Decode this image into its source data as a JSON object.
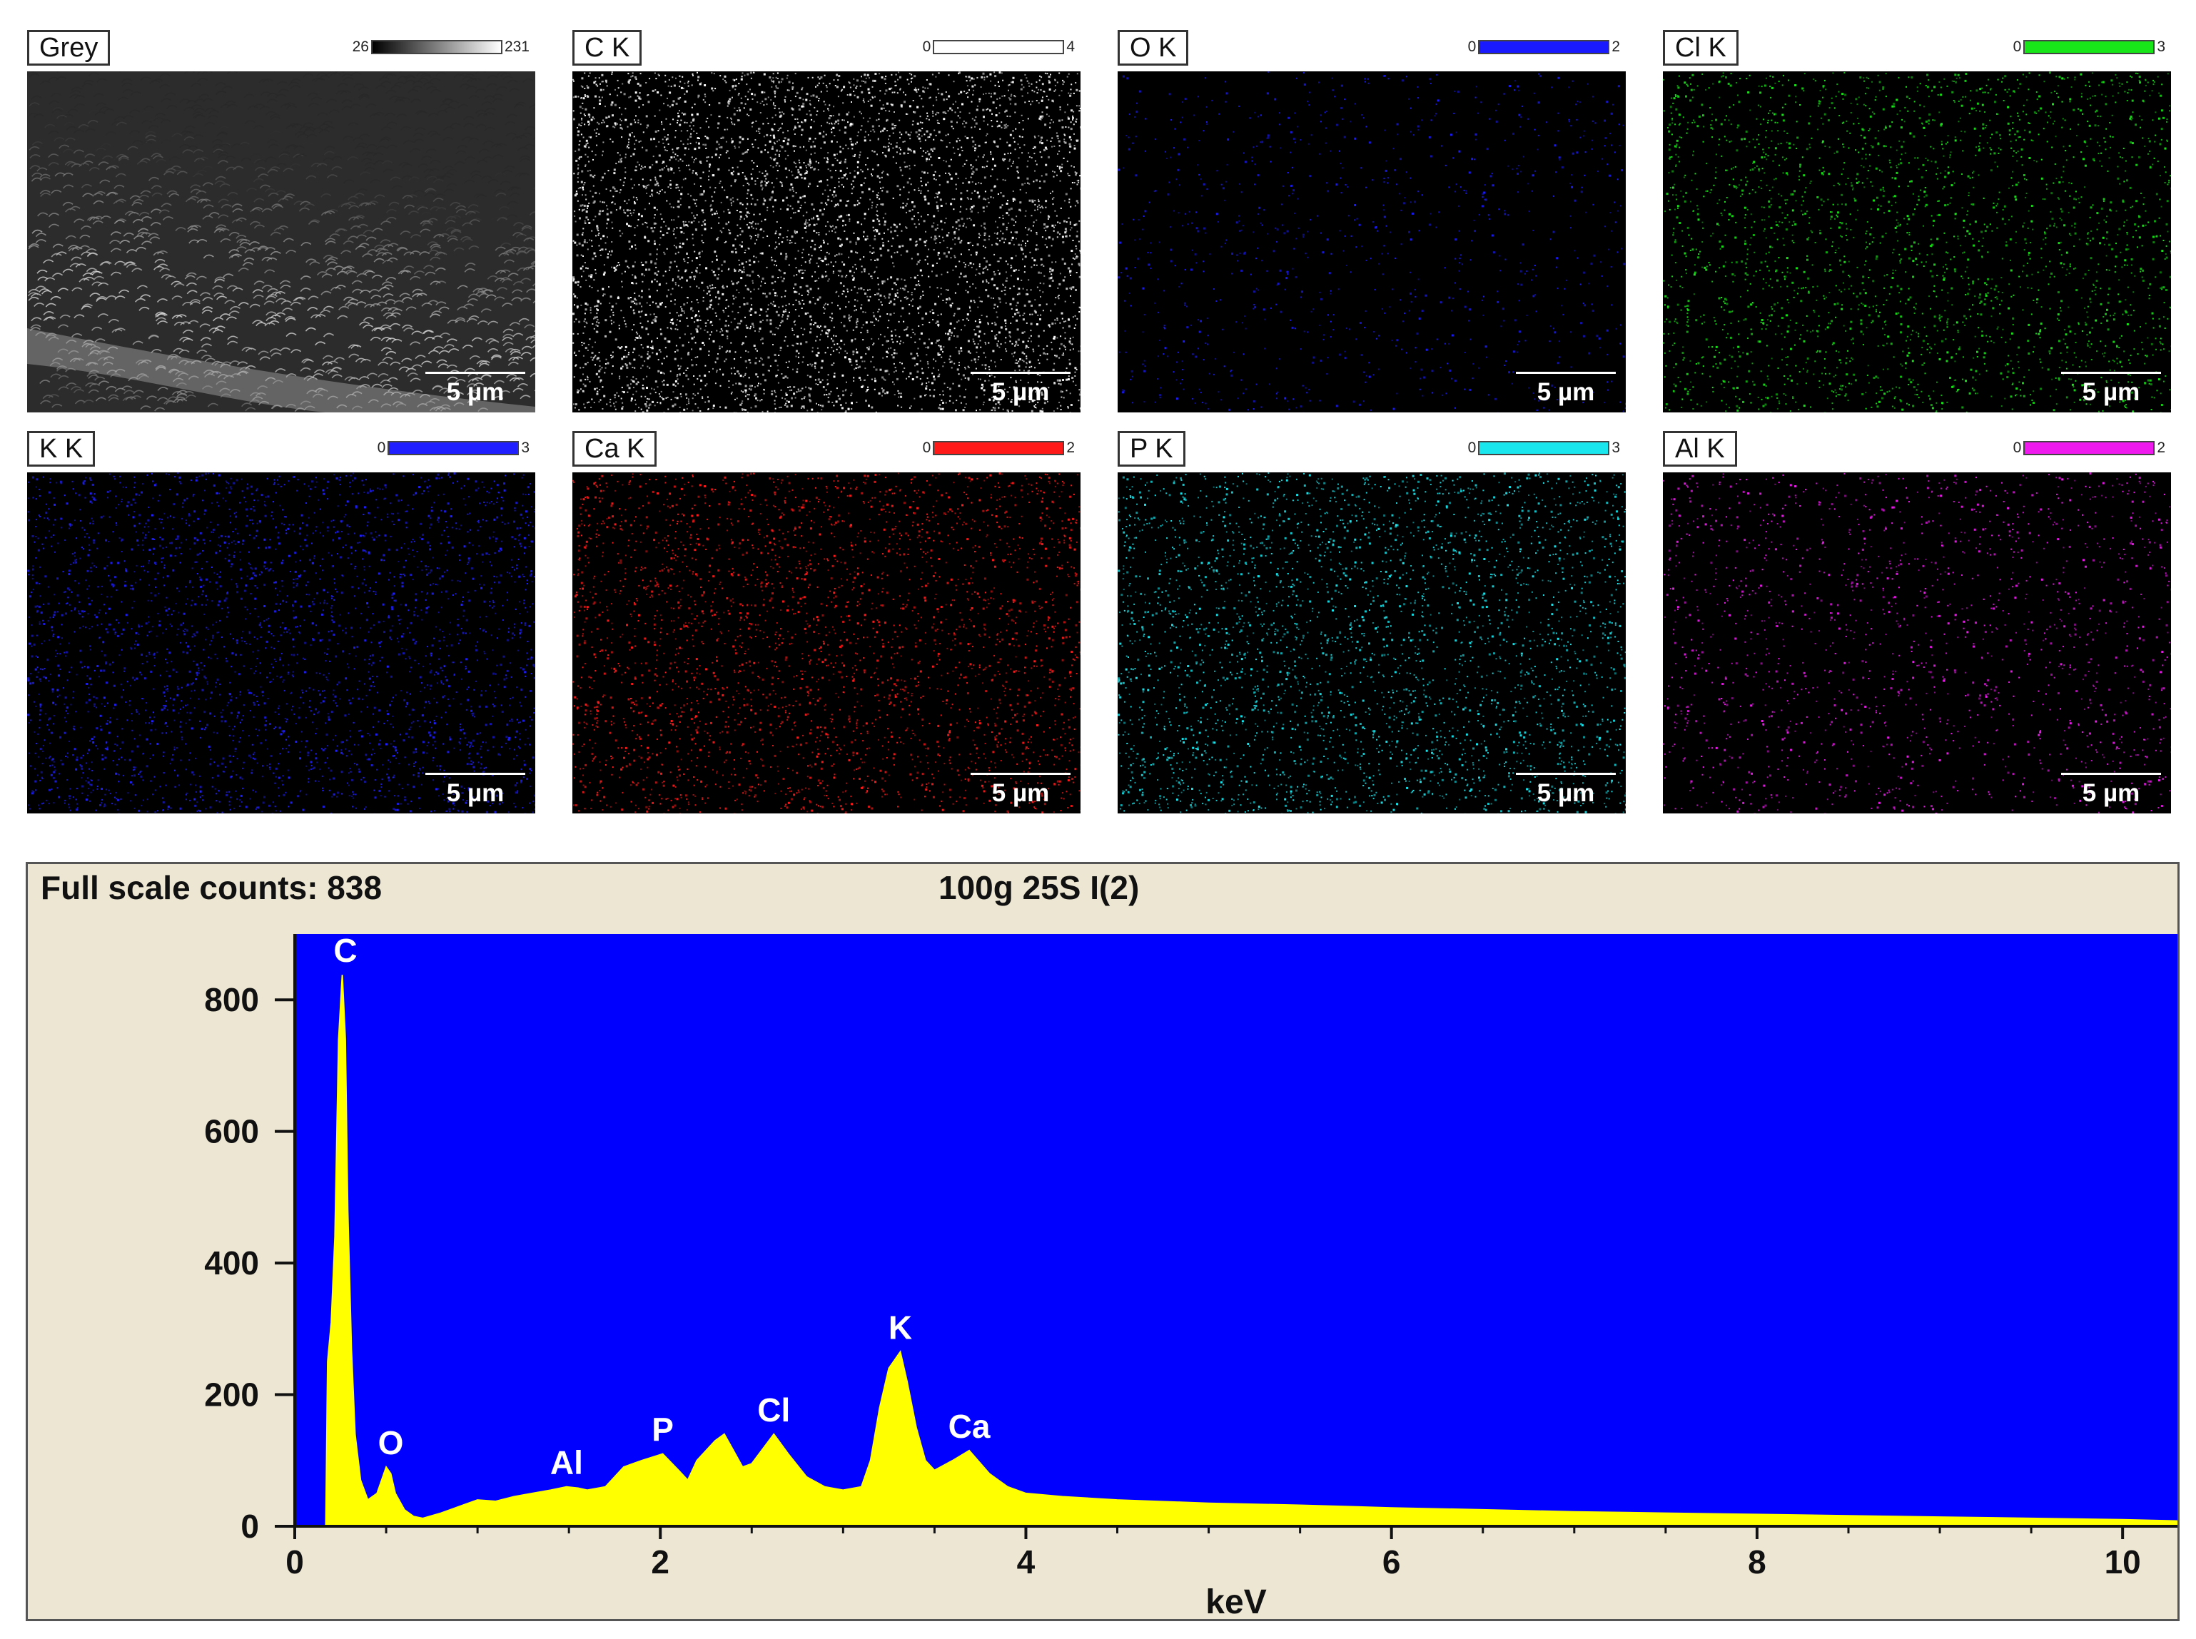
{
  "maps": [
    {
      "label": "Grey",
      "scale_min": "26",
      "scale_max": "231",
      "scalebar": "5 µm",
      "color": "#ffffff",
      "gradient": true,
      "density": 0,
      "sem": true
    },
    {
      "label": "C K",
      "scale_min": "0",
      "scale_max": "4",
      "scalebar": "5 µm",
      "color": "#ffffff",
      "density": 5200
    },
    {
      "label": "O K",
      "scale_min": "0",
      "scale_max": "2",
      "scalebar": "5 µm",
      "color": "#1a1aff",
      "density": 900
    },
    {
      "label": "Cl K",
      "scale_min": "0",
      "scale_max": "3",
      "scalebar": "5 µm",
      "color": "#19e619",
      "density": 2600
    },
    {
      "label": "K K",
      "scale_min": "0",
      "scale_max": "3",
      "scalebar": "5 µm",
      "color": "#1f1fff",
      "density": 3000
    },
    {
      "label": "Ca K",
      "scale_min": "0",
      "scale_max": "2",
      "scalebar": "5 µm",
      "color": "#ff1a1a",
      "density": 3000
    },
    {
      "label": "P K",
      "scale_min": "0",
      "scale_max": "3",
      "scalebar": "5 µm",
      "color": "#1ae6ee",
      "density": 3100
    },
    {
      "label": "Al K",
      "scale_min": "0",
      "scale_max": "2",
      "scalebar": "5 µm",
      "color": "#ee1aee",
      "density": 1600
    }
  ],
  "spectrum_header": {
    "full_scale": "Full scale counts: 838",
    "sample": "100g 25S I(2)"
  },
  "chart_data": {
    "type": "area",
    "xlabel": "keV",
    "ylabel": "",
    "xlim": [
      0,
      10.3
    ],
    "ylim": [
      0,
      900
    ],
    "xticks": [
      0,
      2,
      4,
      6,
      8,
      10
    ],
    "yticks": [
      0,
      200,
      400,
      600,
      800
    ],
    "background_color": "#0000ff",
    "fill_color": "#ffff00",
    "series": [
      {
        "x": [
          0.1,
          0.17,
          0.18,
          0.2,
          0.22,
          0.24,
          0.26,
          0.277,
          0.29,
          0.31,
          0.33,
          0.36,
          0.4,
          0.45,
          0.5,
          0.525,
          0.55,
          0.6,
          0.65,
          0.7,
          0.8,
          0.9,
          1.0,
          1.1,
          1.2,
          1.3,
          1.4,
          1.487,
          1.55,
          1.6,
          1.7,
          1.8,
          1.9,
          2.013,
          2.1,
          2.15,
          2.2,
          2.3,
          2.35,
          2.4,
          2.45,
          2.5,
          2.621,
          2.7,
          2.8,
          2.9,
          3.0,
          3.1,
          3.15,
          3.2,
          3.25,
          3.313,
          3.35,
          3.4,
          3.45,
          3.5,
          3.6,
          3.69,
          3.8,
          3.9,
          4.0,
          4.2,
          4.5,
          5.0,
          5.5,
          6.0,
          6.5,
          7.0,
          7.5,
          8.0,
          8.5,
          9.0,
          9.5,
          10.0,
          10.3
        ],
        "y": [
          0,
          0,
          250,
          310,
          440,
          740,
          838,
          740,
          480,
          270,
          140,
          70,
          40,
          50,
          90,
          80,
          50,
          25,
          15,
          12,
          20,
          30,
          40,
          38,
          45,
          50,
          55,
          60,
          58,
          55,
          60,
          90,
          100,
          110,
          85,
          70,
          100,
          130,
          140,
          115,
          90,
          95,
          140,
          110,
          75,
          60,
          55,
          60,
          100,
          180,
          240,
          265,
          220,
          150,
          100,
          85,
          100,
          115,
          80,
          60,
          50,
          45,
          40,
          35,
          32,
          28,
          25,
          22,
          20,
          18,
          16,
          14,
          12,
          10,
          8
        ]
      }
    ],
    "annotations": [
      {
        "text": "C",
        "x": 0.277,
        "y": 838
      },
      {
        "text": "O",
        "x": 0.525,
        "y": 90
      },
      {
        "text": "Al",
        "x": 1.487,
        "y": 60
      },
      {
        "text": "P",
        "x": 2.013,
        "y": 110
      },
      {
        "text": "Cl",
        "x": 2.621,
        "y": 140
      },
      {
        "text": "K",
        "x": 3.313,
        "y": 265
      },
      {
        "text": "Ca",
        "x": 3.69,
        "y": 115
      }
    ]
  }
}
